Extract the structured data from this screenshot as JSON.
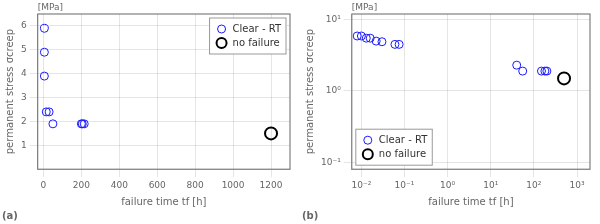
{
  "chart_data": [
    {
      "type": "scatter",
      "title": "(a)",
      "x_label": "failure time tf [h]",
      "y_label": "permanent stress σcreep",
      "annotations": [
        "[MPa]"
      ],
      "series": [
        {
          "name": "Clear - RT",
          "color": "#1a1aff",
          "marker": "circle",
          "x": [
            5,
            5,
            5,
            15,
            50,
            200,
            205,
            215,
            30
          ],
          "values": [
            5.9,
            4.9,
            3.9,
            2.4,
            1.9,
            1.9,
            1.9,
            1.9,
            2.4
          ]
        },
        {
          "name": "no failure",
          "color": "#000000",
          "marker": "circle",
          "x": [
            1200
          ],
          "values": [
            1.5
          ]
        }
      ],
      "xlim": [
        -30,
        1300
      ],
      "ylim": [
        0,
        6.5
      ],
      "xticks": [
        0,
        200,
        400,
        600,
        800,
        1000,
        1200
      ],
      "yticks": [
        1,
        2,
        3,
        4,
        5,
        6
      ],
      "grid": true,
      "legend": "upper right"
    },
    {
      "type": "scatter",
      "title": "(b)",
      "x_label": "failure time tf [h]",
      "y_label": "permanent stress σcreep",
      "annotations": [
        "[MPa]"
      ],
      "series": [
        {
          "name": "Clear - RT",
          "color": "#1a1aff",
          "marker": "circle",
          "x": [
            0.008,
            0.01,
            0.013,
            0.016,
            0.022,
            0.03,
            0.06,
            0.075,
            40,
            55,
            150,
            180,
            200
          ],
          "values": [
            5.9,
            5.9,
            5.5,
            5.5,
            5.0,
            4.9,
            4.5,
            4.5,
            2.3,
            1.9,
            1.9,
            1.9,
            1.9
          ]
        },
        {
          "name": "no failure",
          "color": "#000000",
          "marker": "circle",
          "x": [
            500
          ],
          "values": [
            1.5
          ]
        }
      ],
      "xlim": [
        0.006,
        2000
      ],
      "ylim": [
        0.08,
        12
      ],
      "xticks": [
        {
          "value": 0.01,
          "label": "10⁻²"
        },
        {
          "value": 0.1,
          "label": "10⁻¹"
        },
        {
          "value": 1,
          "label": "10⁰"
        },
        {
          "value": 10,
          "label": "10¹"
        },
        {
          "value": 100,
          "label": "10²"
        },
        {
          "value": 1000,
          "label": "10³"
        }
      ],
      "yticks": [
        {
          "value": 0.1,
          "label": "10⁻¹"
        },
        {
          "value": 1,
          "label": "10⁰"
        },
        {
          "value": 10,
          "label": "10¹"
        }
      ],
      "log": true,
      "grid": true,
      "legend": "lower left"
    }
  ]
}
